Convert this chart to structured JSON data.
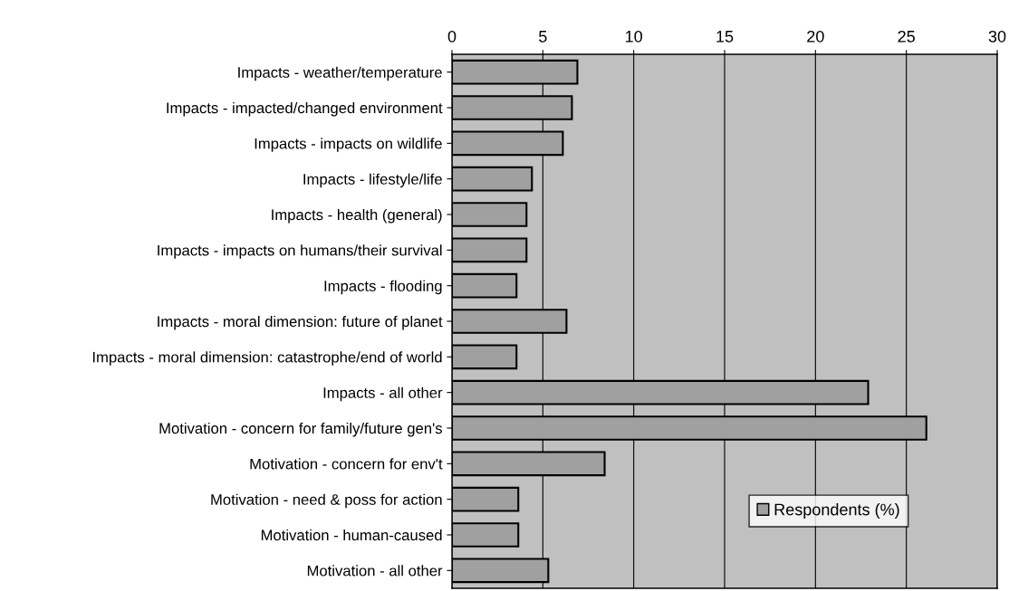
{
  "chart_data": {
    "type": "bar",
    "orientation": "horizontal",
    "categories": [
      "Impacts - weather/temperature",
      "Impacts - impacted/changed environment",
      "Impacts - impacts on wildlife",
      "Impacts - lifestyle/life",
      "Impacts - health (general)",
      "Impacts - impacts on humans/their survival",
      "Impacts - flooding",
      "Impacts - moral dimension: future of planet",
      "Impacts - moral dimension: catastrophe/end of world",
      "Impacts - all other",
      "Motivation - concern for family/future gen's",
      "Motivation - concern for env't",
      "Motivation - need & poss for action",
      "Motivation - human-caused",
      "Motivation - all other"
    ],
    "series": [
      {
        "name": "Respondents (%)",
        "color": "#a0a0a0",
        "values": [
          6.9,
          6.6,
          6.1,
          4.4,
          4.1,
          4.1,
          3.55,
          6.3,
          3.55,
          22.9,
          26.1,
          8.4,
          3.65,
          3.65,
          5.3
        ]
      }
    ],
    "xlim": [
      0,
      30
    ],
    "xticks": [
      0,
      5,
      10,
      15,
      20,
      25,
      30
    ],
    "grid": "x",
    "legend": "bottom right"
  }
}
